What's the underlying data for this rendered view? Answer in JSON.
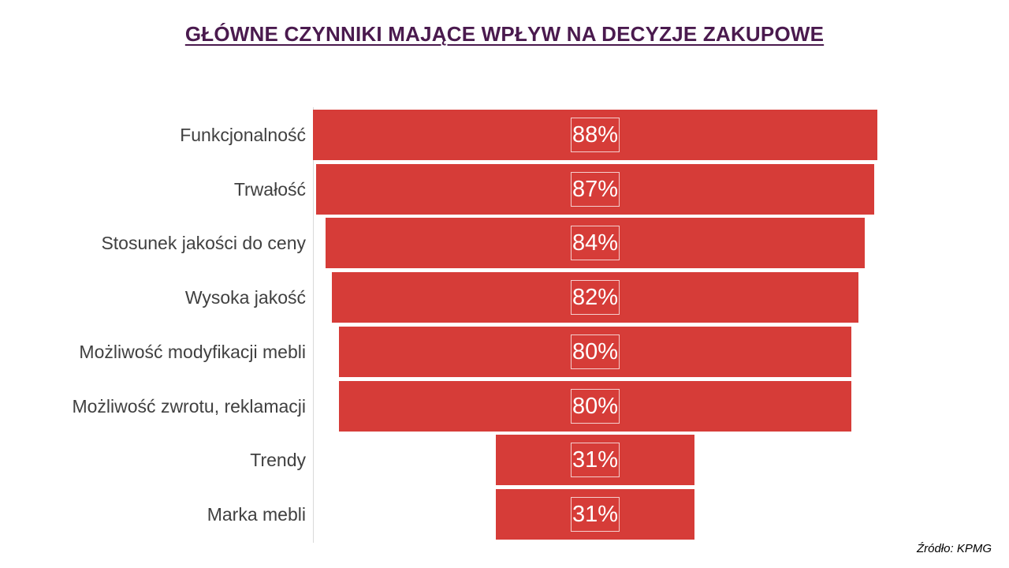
{
  "title": "GŁÓWNE CZYNNIKI MAJĄCE WPŁYW NA DECYZJE ZAKUPOWE",
  "source": "Źródło: KPMG",
  "colors": {
    "bar": "#d63c38",
    "title": "#4a1a4e",
    "label": "#404040"
  },
  "chart_data": {
    "type": "bar",
    "orientation": "horizontal-funnel",
    "title": "GŁÓWNE CZYNNIKI MAJĄCE WPŁYW NA DECYZJE ZAKUPOWE",
    "categories": [
      "Funkcjonalność",
      "Trwałość",
      "Stosunek jakości do ceny",
      "Wysoka jakość",
      "Możliwość modyfikacji mebli",
      "Możliwość zwrotu, reklamacji",
      "Trendy",
      "Marka mebli"
    ],
    "values": [
      88,
      87,
      84,
      82,
      80,
      80,
      31,
      31
    ],
    "value_labels": [
      "88%",
      "87%",
      "84%",
      "82%",
      "80%",
      "80%",
      "31%",
      "31%"
    ],
    "unit": "%",
    "grid": false,
    "legend": "none"
  }
}
